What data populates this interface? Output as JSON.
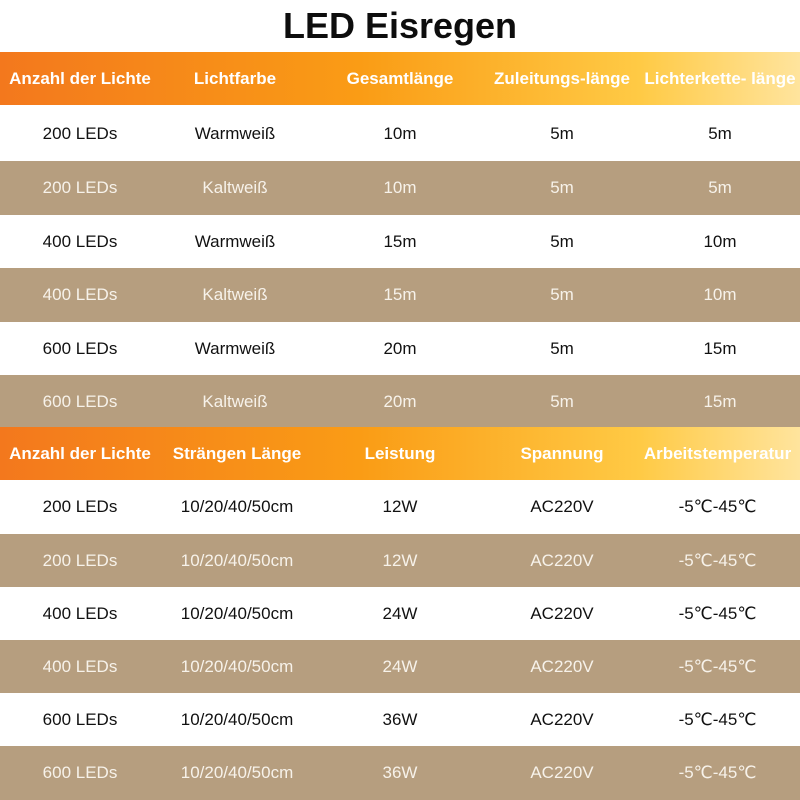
{
  "title": "LED Eisregen",
  "table1": {
    "headers": [
      "Anzahl der Lichte",
      "Lichtfarbe",
      "Gesamtlänge",
      "Zuleitungs-länge",
      "Lichterkette- länge"
    ],
    "rows": [
      [
        "200 LEDs",
        "Warmweiß",
        "10m",
        "5m",
        "5m"
      ],
      [
        "200 LEDs",
        "Kaltweiß",
        "10m",
        "5m",
        "5m"
      ],
      [
        "400 LEDs",
        "Warmweiß",
        "15m",
        "5m",
        "10m"
      ],
      [
        "400 LEDs",
        "Kaltweiß",
        "15m",
        "5m",
        "10m"
      ],
      [
        "600 LEDs",
        "Warmweiß",
        "20m",
        "5m",
        "15m"
      ],
      [
        "600 LEDs",
        "Kaltweiß",
        "20m",
        "5m",
        "15m"
      ]
    ]
  },
  "table2": {
    "headers": [
      "Anzahl der Lichte",
      "Strängen Länge",
      "Leistung",
      "Spannung",
      "Arbeitstemperatur"
    ],
    "rows": [
      [
        "200 LEDs",
        "10/20/40/50cm",
        "12W",
        "AC220V",
        "-5℃-45℃"
      ],
      [
        "200 LEDs",
        "10/20/40/50cm",
        "12W",
        "AC220V",
        "-5℃-45℃"
      ],
      [
        "400 LEDs",
        "10/20/40/50cm",
        "24W",
        "AC220V",
        "-5℃-45℃"
      ],
      [
        "400 LEDs",
        "10/20/40/50cm",
        "24W",
        "AC220V",
        "-5℃-45℃"
      ],
      [
        "600 LEDs",
        "10/20/40/50cm",
        "36W",
        "AC220V",
        "-5℃-45℃"
      ],
      [
        "600 LEDs",
        "10/20/40/50cm",
        "36W",
        "AC220V",
        "-5℃-45℃"
      ]
    ]
  },
  "colors": {
    "header_gradient_start": "#f3781d",
    "header_gradient_end": "#ffe49d",
    "row_dark": "#b69e7f",
    "row_light": "#ffffff"
  }
}
